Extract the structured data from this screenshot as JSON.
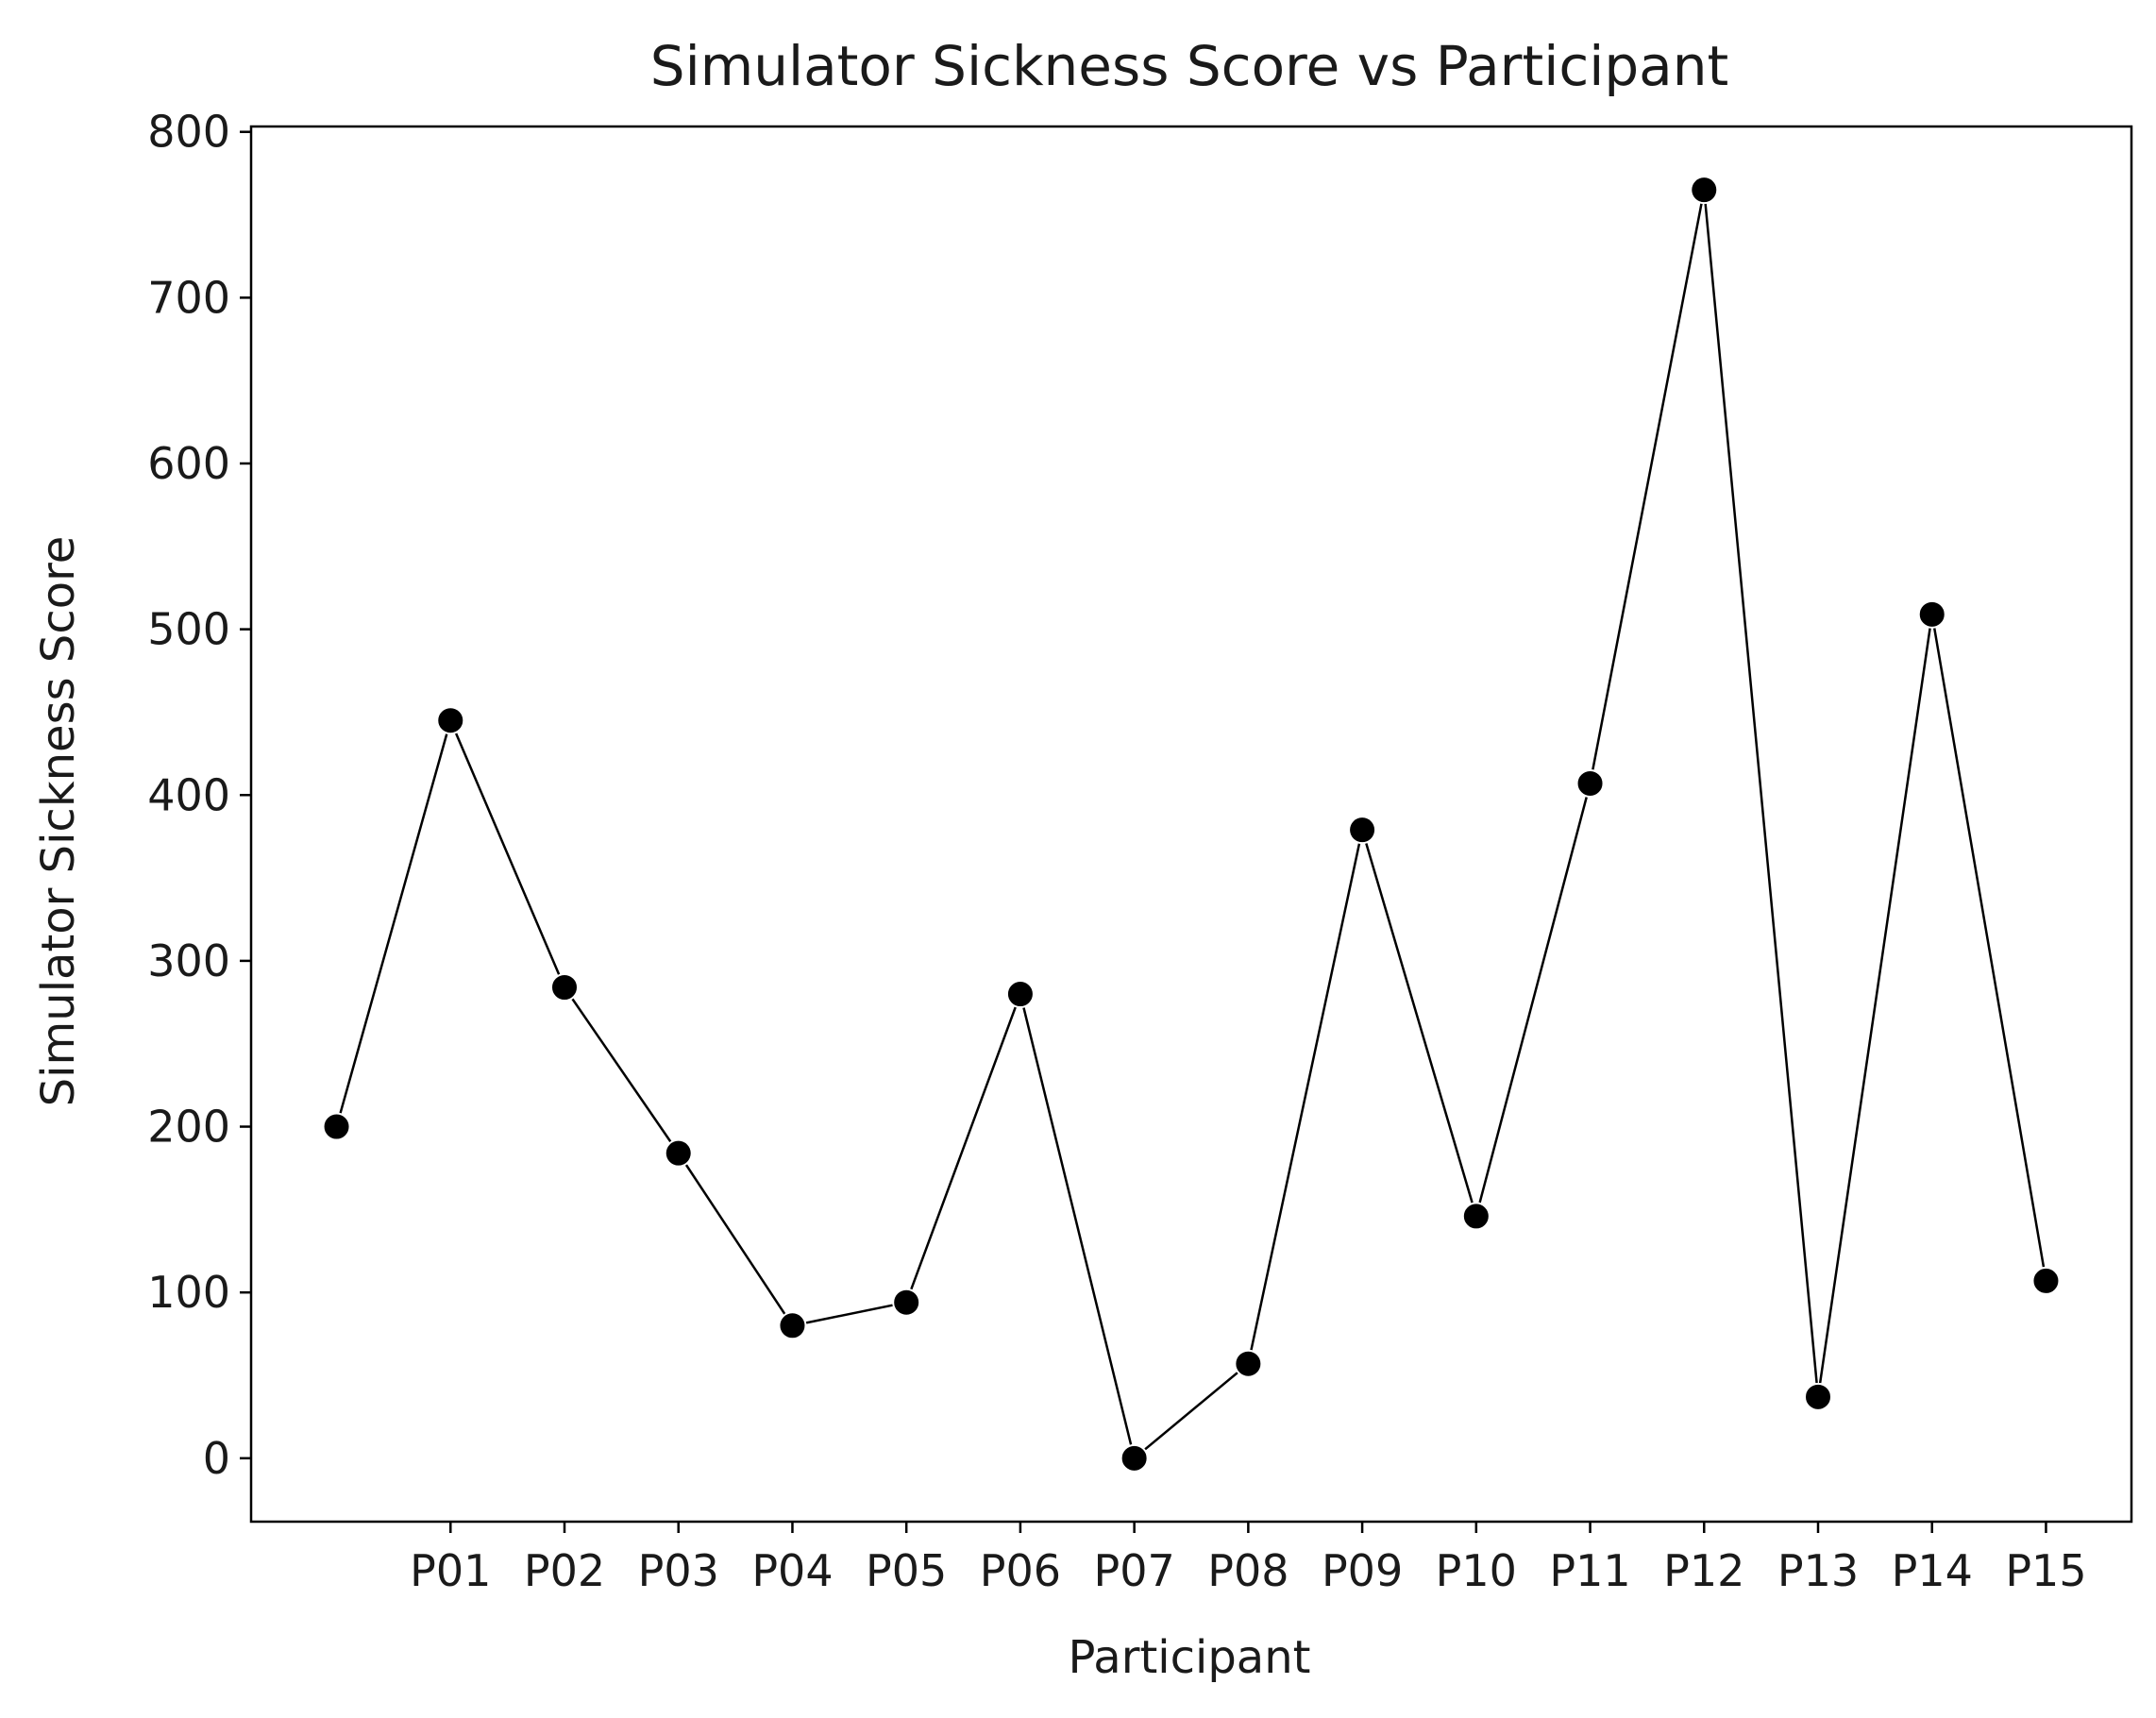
{
  "chart_data": {
    "type": "line",
    "title": "Simulator Sickness Score vs Participant",
    "xlabel": "Participant",
    "ylabel": "Simulator Sickness Score",
    "x_positions": [
      0,
      1,
      2,
      3,
      4,
      5,
      6,
      7,
      8,
      9,
      10,
      11,
      12,
      13,
      14,
      15
    ],
    "values": [
      200,
      445,
      284,
      184,
      80,
      94,
      280,
      0,
      57,
      379,
      146,
      407,
      765,
      37,
      509,
      107
    ],
    "tick_positions": [
      1,
      2,
      3,
      4,
      5,
      6,
      7,
      8,
      9,
      10,
      11,
      12,
      13,
      14,
      15
    ],
    "tick_labels": [
      "P01",
      "P02",
      "P03",
      "P04",
      "P05",
      "P06",
      "P07",
      "P08",
      "P09",
      "P10",
      "P11",
      "P12",
      "P13",
      "P14",
      "P15"
    ],
    "yticks": [
      0,
      100,
      200,
      300,
      400,
      500,
      600,
      700,
      800
    ],
    "xlim": [
      -0.75,
      15.75
    ],
    "ylim": [
      -38.25,
      803.25
    ],
    "grid": false,
    "line_color": "#000000",
    "marker_color": "#000000"
  }
}
